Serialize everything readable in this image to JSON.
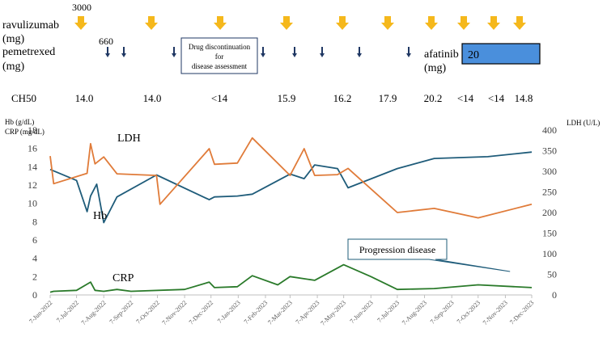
{
  "treatment": {
    "ravulizumab": {
      "label_line1": "ravulizumab",
      "label_line2": "(mg)",
      "first_dose": "3000",
      "arrow_color": "#f5b81c"
    },
    "pemetrexed": {
      "label_line1": "pemetrexed",
      "label_line2": "(mg)",
      "first_dose": "660",
      "arrow_color": "#1f3763"
    },
    "afatinib": {
      "label_line1": "afatinib",
      "label_line2": "(mg)",
      "dose": "20",
      "bar_color": "#4a8fdc"
    },
    "discontinuation_box": {
      "line1": "Drug discontinuation",
      "line2": "for",
      "line3": "disease assessment"
    },
    "ch50": {
      "label": "CH50",
      "values": [
        "14.0",
        "14.0",
        "<14",
        "15.9",
        "16.2",
        "17.9",
        "20.2",
        "<14",
        "<14",
        "14.8"
      ]
    }
  },
  "chart_data": {
    "type": "line",
    "title": "",
    "left_axis_label_line1": "Hb    (g/dL)",
    "left_axis_label_line2": "CRP (mg/dL)",
    "right_axis_label": "LDH (U/L)",
    "ylim_left": [
      0,
      18
    ],
    "yticks_left": [
      0,
      2,
      4,
      6,
      8,
      10,
      12,
      14,
      16,
      18
    ],
    "ylim_right": [
      0,
      400
    ],
    "yticks_right": [
      0,
      50,
      100,
      150,
      200,
      250,
      300,
      350,
      400
    ],
    "x_range_days": [
      0,
      548
    ],
    "x_ticks": [
      {
        "label": "7-Jun-2022",
        "day": 0
      },
      {
        "label": "7-Jul-2022",
        "day": 30
      },
      {
        "label": "7-Aug-2022",
        "day": 61
      },
      {
        "label": "7-Sep-2022",
        "day": 92
      },
      {
        "label": "7-Oct-2022",
        "day": 122
      },
      {
        "label": "7-Nov-2022",
        "day": 153
      },
      {
        "label": "7-Dec-2022",
        "day": 183
      },
      {
        "label": "7-Jan-2023",
        "day": 214
      },
      {
        "label": "7-Feb-2023",
        "day": 245
      },
      {
        "label": "7-Mar-2023",
        "day": 273
      },
      {
        "label": "7-Apr-2023",
        "day": 304
      },
      {
        "label": "7-May-2023",
        "day": 334
      },
      {
        "label": "7-Jun-2023",
        "day": 365
      },
      {
        "label": "7-Jul-2023",
        "day": 395
      },
      {
        "label": "7-Aug-2023",
        "day": 426
      },
      {
        "label": "7-Sep-2023",
        "day": 457
      },
      {
        "label": "7-Oct-2023",
        "day": 487
      },
      {
        "label": "7-Nov-2023",
        "day": 518
      },
      {
        "label": "7-Dec-2023",
        "day": 548
      }
    ],
    "series": [
      {
        "name": "Hb",
        "axis": "left",
        "color": "#1f5c7a",
        "label": "Hb",
        "x": [
          0,
          30,
          42,
          46,
          53,
          61,
          76,
          121,
          181,
          187,
          213,
          230,
          273,
          289,
          301,
          327,
          339,
          395,
          437,
          498,
          548
        ],
        "y": [
          13.7,
          12.5,
          9.1,
          10.8,
          12.1,
          7.9,
          10.7,
          13.1,
          10.4,
          10.7,
          10.8,
          11.0,
          13.2,
          12.7,
          14.2,
          13.8,
          11.7,
          13.8,
          14.9,
          15.1,
          15.6
        ]
      },
      {
        "name": "LDH",
        "axis": "right",
        "color": "#e07b39",
        "label": "LDH",
        "x": [
          0,
          4,
          42,
          46,
          51,
          61,
          76,
          121,
          125,
          181,
          187,
          213,
          230,
          273,
          289,
          301,
          327,
          339,
          395,
          437,
          487,
          548
        ],
        "y": [
          337,
          270,
          295,
          367,
          318,
          335,
          294,
          290,
          220,
          355,
          317,
          320,
          381,
          290,
          355,
          290,
          292,
          307,
          200,
          210,
          187,
          220
        ]
      },
      {
        "name": "CRP",
        "axis": "left",
        "color": "#2a7a2a",
        "label": "CRP",
        "x": [
          0,
          4,
          30,
          46,
          51,
          61,
          76,
          92,
          153,
          181,
          187,
          213,
          230,
          259,
          273,
          301,
          334,
          365,
          395,
          437,
          487,
          548
        ],
        "y": [
          0.3,
          0.4,
          0.5,
          1.4,
          0.5,
          0.4,
          0.6,
          0.4,
          0.6,
          1.4,
          0.8,
          0.9,
          2.1,
          1.1,
          2.0,
          1.6,
          3.3,
          2.0,
          0.6,
          0.7,
          1.1,
          0.8
        ]
      }
    ],
    "annotation": {
      "text": "Progression disease",
      "day": 352,
      "value": 3.3
    }
  }
}
